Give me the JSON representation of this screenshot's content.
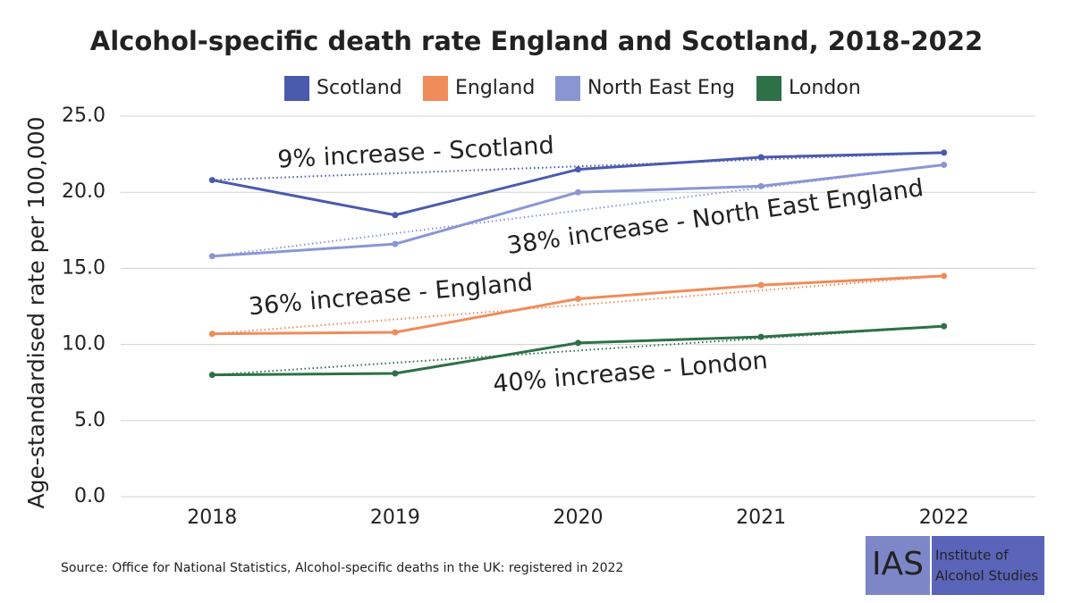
{
  "chart_data": {
    "type": "line",
    "title": "Alcohol-specific death rate England and Scotland, 2018-2022",
    "y_label": "Age-standardised rate per 100,000",
    "categories": [
      "2018",
      "2019",
      "2020",
      "2021",
      "2022"
    ],
    "series": [
      {
        "name": "Scotland",
        "color": "#4a5aad",
        "values": [
          20.8,
          18.5,
          21.5,
          22.3,
          22.6
        ]
      },
      {
        "name": "England",
        "color": "#ef8c5a",
        "values": [
          10.7,
          10.8,
          13.0,
          13.9,
          14.5
        ]
      },
      {
        "name": "North East Eng",
        "color": "#8a96d4",
        "values": [
          15.8,
          16.6,
          20.0,
          20.4,
          21.8
        ]
      },
      {
        "name": "London",
        "color": "#2e7047",
        "values": [
          8.0,
          8.1,
          10.1,
          10.5,
          11.2
        ]
      }
    ],
    "annotations": [
      "9% increase - Scotland",
      "36% increase - England",
      "38% increase - North East England",
      "40% increase - London"
    ],
    "ylim": [
      0,
      25
    ],
    "yticks": [
      {
        "value": 0,
        "label": "0.0"
      },
      {
        "value": 5,
        "label": "5.0"
      },
      {
        "value": 10,
        "label": "10.0"
      },
      {
        "value": 15,
        "label": "15.0"
      },
      {
        "value": 20,
        "label": "20.0"
      },
      {
        "value": 25,
        "label": "25.0"
      }
    ],
    "grid": true,
    "source": "Source: Office for National Statistics, Alcohol-specific deaths in the UK: registered in 2022",
    "logo": {
      "abbr": "IAS",
      "line1": "Institute of",
      "line2": "Alcohol Studies"
    }
  }
}
